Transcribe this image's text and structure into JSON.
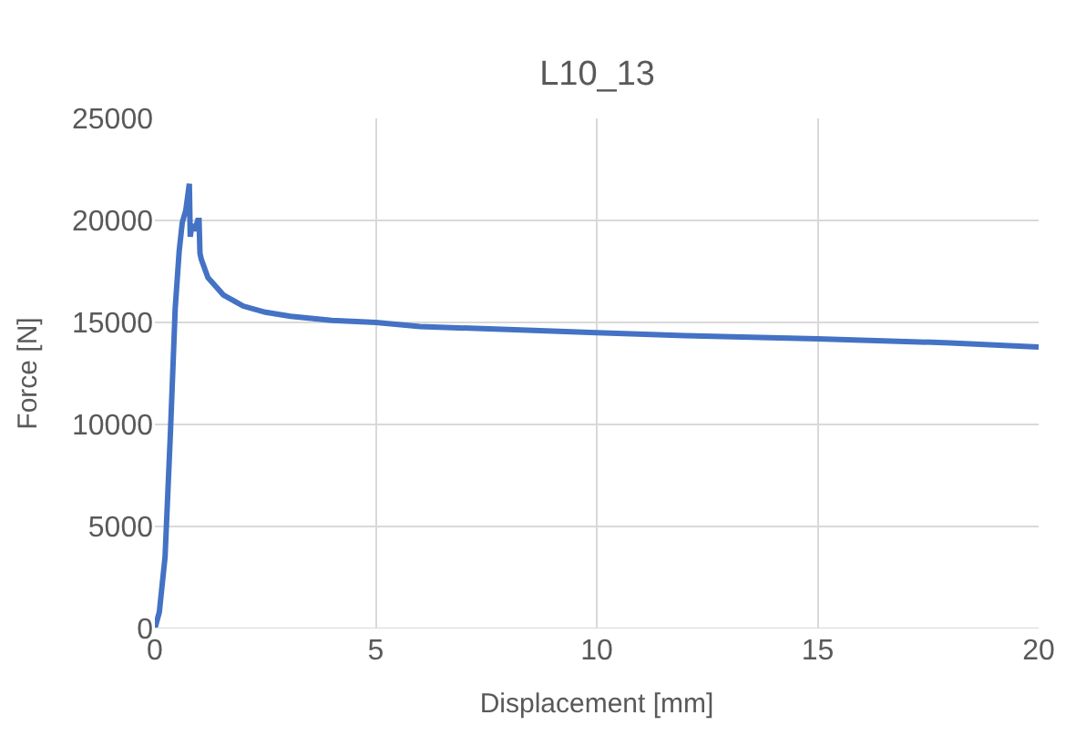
{
  "chart_data": {
    "type": "line",
    "title": "L10_13",
    "xlabel": "Displacement [mm]",
    "ylabel": "Force [N]",
    "series": [
      {
        "color": "#4472c4",
        "x": [
          0,
          0.1,
          0.23,
          0.35,
          0.46,
          0.55,
          0.62,
          0.7,
          0.78,
          0.8,
          0.84,
          0.9,
          0.97,
          1.0,
          1.02,
          1.05,
          1.2,
          1.55,
          2.0,
          2.5,
          3.07,
          4.0,
          5.0,
          6.0,
          8.0,
          10.0,
          12.0,
          15.0,
          18.0,
          20.0
        ],
        "values": [
          0,
          800,
          3500,
          9500,
          15700,
          18500,
          19900,
          20500,
          21800,
          19200,
          19800,
          19500,
          20000,
          20000,
          18400,
          18100,
          17200,
          16350,
          15800,
          15500,
          15300,
          15100,
          15000,
          14800,
          14650,
          14500,
          14350,
          14200,
          14000,
          13800
        ]
      }
    ],
    "xlim": [
      0,
      20
    ],
    "xticks": [
      0,
      5,
      10,
      15,
      20
    ],
    "ylim": [
      0,
      25000
    ],
    "yticks": [
      0,
      5000,
      10000,
      15000,
      20000,
      25000
    ],
    "grid": true,
    "legend": false,
    "marker": "none",
    "line_style": "solid"
  }
}
